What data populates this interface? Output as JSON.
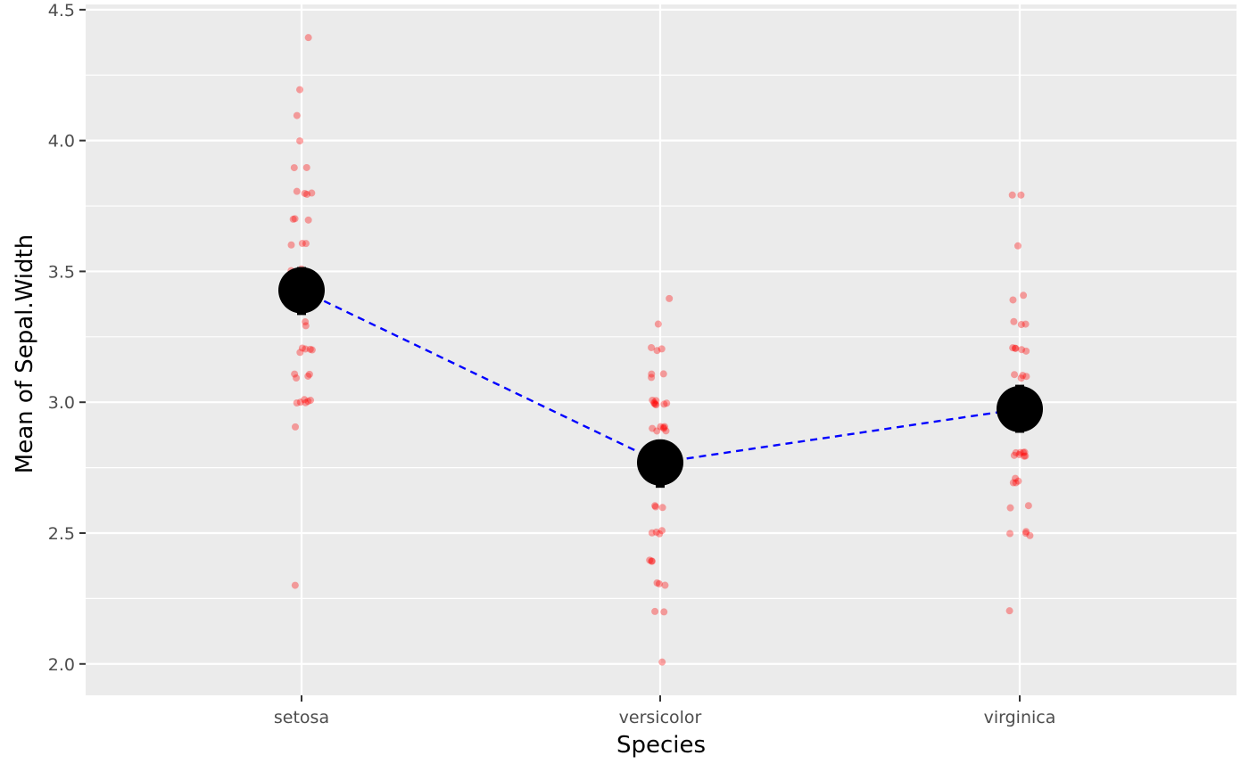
{
  "chart_data": {
    "type": "scatter",
    "title": "",
    "xlabel": "Species",
    "ylabel": "Mean of Sepal.Width",
    "categories": [
      "setosa",
      "versicolor",
      "virginica"
    ],
    "ylim": [
      1.88,
      4.52
    ],
    "y_ticks": [
      2.0,
      2.5,
      3.0,
      3.5,
      4.0,
      4.5
    ],
    "y_tick_labels": [
      "2.0",
      "2.5",
      "3.0",
      "3.5",
      "4.0",
      "4.5"
    ],
    "grid": true,
    "legend": "none",
    "means": [
      3.428,
      2.77,
      2.974
    ],
    "error_bars": [
      {
        "low": 3.34,
        "high": 3.51
      },
      {
        "low": 2.68,
        "high": 2.85
      },
      {
        "low": 2.89,
        "high": 3.06
      }
    ],
    "mean_line": {
      "style": "dashed",
      "color": "#0000ff"
    },
    "mean_point_color": "#000000",
    "point_color": "#ff0000",
    "points": [
      {
        "category": "setosa",
        "values": [
          3.5,
          3.0,
          3.2,
          3.1,
          3.6,
          3.9,
          3.4,
          3.4,
          2.9,
          3.1,
          3.7,
          3.4,
          3.0,
          3.0,
          4.0,
          4.4,
          3.9,
          3.5,
          3.8,
          3.8,
          3.4,
          3.7,
          3.6,
          3.3,
          3.4,
          3.0,
          3.4,
          3.5,
          3.4,
          3.2,
          3.1,
          3.4,
          4.1,
          4.2,
          3.1,
          3.2,
          3.5,
          3.6,
          3.0,
          3.4,
          3.5,
          2.3,
          3.2,
          3.5,
          3.8,
          3.0,
          3.8,
          3.2,
          3.7,
          3.3
        ]
      },
      {
        "category": "versicolor",
        "values": [
          3.2,
          3.2,
          3.1,
          2.3,
          2.8,
          2.8,
          3.3,
          2.4,
          2.9,
          2.7,
          2.0,
          3.0,
          2.2,
          2.9,
          2.9,
          3.1,
          3.0,
          2.7,
          2.2,
          2.5,
          3.2,
          2.8,
          2.5,
          2.8,
          2.9,
          3.0,
          2.8,
          3.0,
          2.9,
          2.6,
          2.4,
          2.4,
          2.7,
          2.7,
          3.0,
          3.4,
          3.1,
          2.3,
          3.0,
          2.5,
          2.6,
          3.0,
          2.6,
          2.3,
          2.7,
          3.0,
          2.9,
          2.9,
          2.5,
          2.8
        ]
      },
      {
        "category": "virginica",
        "values": [
          3.3,
          2.7,
          3.0,
          2.9,
          3.0,
          3.0,
          2.5,
          2.9,
          2.5,
          3.6,
          3.2,
          2.7,
          3.0,
          2.5,
          2.8,
          3.2,
          3.0,
          3.8,
          2.6,
          2.2,
          3.2,
          2.8,
          2.8,
          2.7,
          3.3,
          3.2,
          2.8,
          3.0,
          2.8,
          3.0,
          2.8,
          3.8,
          2.8,
          2.8,
          2.6,
          3.0,
          3.4,
          3.1,
          3.0,
          3.1,
          3.1,
          3.1,
          2.7,
          3.2,
          3.3,
          3.0,
          2.5,
          3.0,
          3.4,
          3.0
        ]
      }
    ]
  }
}
